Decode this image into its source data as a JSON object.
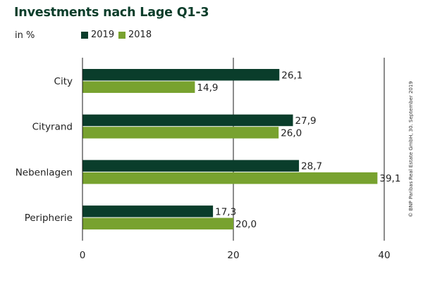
{
  "header": {
    "title": "Investments nach Lage Q1-3",
    "unit": "in %"
  },
  "legend": [
    {
      "label": "2019",
      "color": "#0a3d2b"
    },
    {
      "label": "2018",
      "color": "#78a22f"
    }
  ],
  "copyright": "© BNP Paribas Real Estate GmbH, 30. September 2019",
  "chart_data": {
    "type": "bar",
    "orientation": "horizontal",
    "title": "Investments nach Lage Q1-3",
    "unit": "in %",
    "categories": [
      "City",
      "Cityrand",
      "Nebenlagen",
      "Peripherie"
    ],
    "series": [
      {
        "name": "2019",
        "color": "#0a3d2b",
        "values": [
          26.1,
          27.9,
          28.7,
          17.3
        ],
        "labels": [
          "26,1",
          "27,9",
          "28,7",
          "17,3"
        ]
      },
      {
        "name": "2018",
        "color": "#78a22f",
        "values": [
          14.9,
          26.0,
          39.1,
          20.0
        ],
        "labels": [
          "14,9",
          "26,0",
          "39,1",
          "20,0"
        ]
      }
    ],
    "xlim": [
      0,
      40
    ],
    "xticks": [
      0,
      20,
      40
    ],
    "xtick_labels": [
      "0",
      "20",
      "40"
    ],
    "grid": true,
    "legend_position": "top-left"
  }
}
